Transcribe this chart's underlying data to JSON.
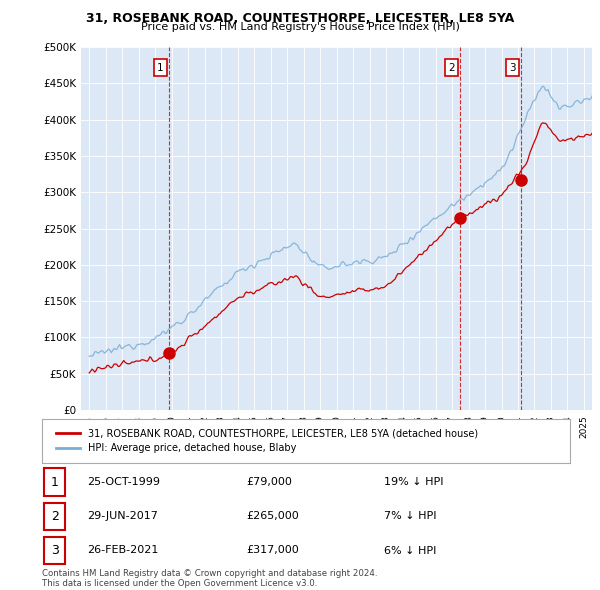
{
  "title1": "31, ROSEBANK ROAD, COUNTESTHORPE, LEICESTER, LE8 5YA",
  "title2": "Price paid vs. HM Land Registry's House Price Index (HPI)",
  "bg_color": "#ffffff",
  "plot_bg": "#dce8f5",
  "grid_color": "#b8cfe0",
  "red_color": "#cc0000",
  "blue_color": "#7aadd4",
  "sale_dates": [
    1999.82,
    2017.49,
    2021.16
  ],
  "sale_prices": [
    79000,
    265000,
    317000
  ],
  "sale_labels": [
    "1",
    "2",
    "3"
  ],
  "legend_entries": [
    "31, ROSEBANK ROAD, COUNTESTHORPE, LEICESTER, LE8 5YA (detached house)",
    "HPI: Average price, detached house, Blaby"
  ],
  "table_data": [
    [
      "1",
      "25-OCT-1999",
      "£79,000",
      "19% ↓ HPI"
    ],
    [
      "2",
      "29-JUN-2017",
      "£265,000",
      "7% ↓ HPI"
    ],
    [
      "3",
      "26-FEB-2021",
      "£317,000",
      "6% ↓ HPI"
    ]
  ],
  "footnote": "Contains HM Land Registry data © Crown copyright and database right 2024.\nThis data is licensed under the Open Government Licence v3.0.",
  "ylim": [
    0,
    500000
  ],
  "xlim_start": 1994.5,
  "xlim_end": 2025.5
}
